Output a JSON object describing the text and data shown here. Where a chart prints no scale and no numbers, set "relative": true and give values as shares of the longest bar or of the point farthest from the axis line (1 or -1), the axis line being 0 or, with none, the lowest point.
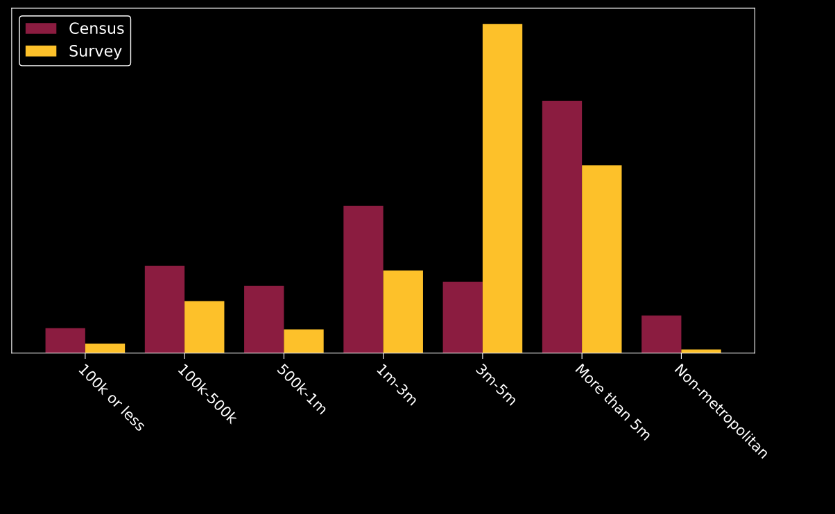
{
  "chart_data": {
    "type": "bar",
    "relative": true,
    "categories": [
      "100k or less",
      "100k-500k",
      "500k-1m",
      "1m-3m",
      "3m-5m",
      "More than 5m",
      "Non-metropolitan"
    ],
    "series": [
      {
        "name": "Census",
        "color": "#8b1c40",
        "values": [
          0.076,
          0.265,
          0.204,
          0.448,
          0.217,
          0.766,
          0.114
        ]
      },
      {
        "name": "Survey",
        "color": "#fdc12a",
        "values": [
          0.029,
          0.158,
          0.072,
          0.251,
          1.0,
          0.571,
          0.011
        ]
      }
    ],
    "legend": "top left",
    "grid": false
  }
}
